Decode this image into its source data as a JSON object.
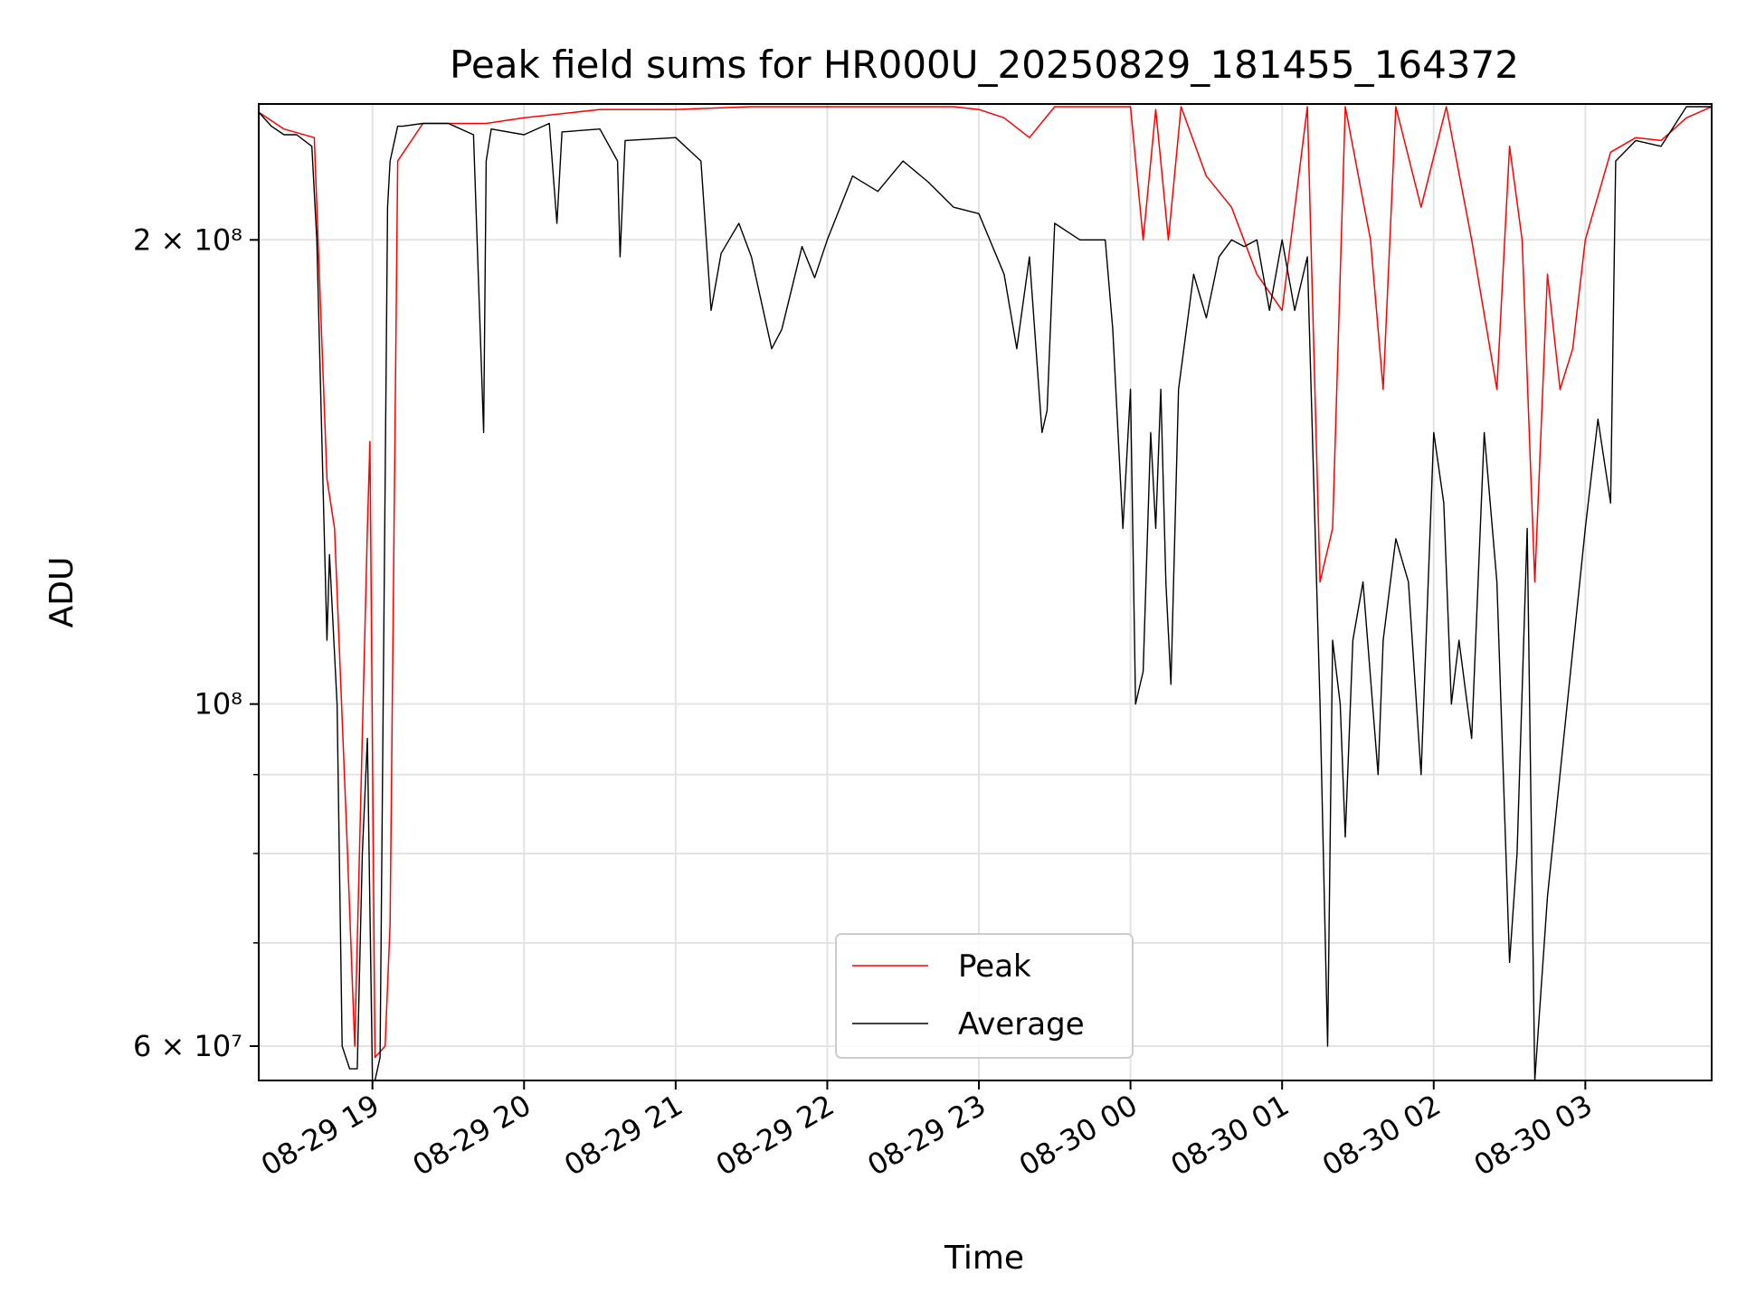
{
  "chart_data": {
    "type": "line",
    "title": "Peak field sums for HR000U_20250829_181455_164372",
    "xlabel": "Time",
    "ylabel": "ADU",
    "y_scale": "log",
    "ylim": [
      57000000,
      245000000
    ],
    "xlim": [
      "2025-08-29 18:15",
      "2025-08-30 03:50"
    ],
    "grid": true,
    "legend_position": "bottom-center",
    "x_ticks": [
      {
        "value": "2025-08-29 19:00",
        "label": "08-29 19"
      },
      {
        "value": "2025-08-29 20:00",
        "label": "08-29 20"
      },
      {
        "value": "2025-08-29 21:00",
        "label": "08-29 21"
      },
      {
        "value": "2025-08-29 22:00",
        "label": "08-29 22"
      },
      {
        "value": "2025-08-29 23:00",
        "label": "08-29 23"
      },
      {
        "value": "2025-08-30 00:00",
        "label": "08-30 00"
      },
      {
        "value": "2025-08-30 01:00",
        "label": "08-30 01"
      },
      {
        "value": "2025-08-30 02:00",
        "label": "08-30 02"
      },
      {
        "value": "2025-08-30 03:00",
        "label": "08-30 03"
      }
    ],
    "y_major_ticks": [
      {
        "value": 60000000,
        "label": "6 × 10⁷"
      },
      {
        "value": 100000000,
        "label": "10⁸"
      },
      {
        "value": 200000000,
        "label": "2 × 10⁸"
      }
    ],
    "y_minor_ticks": [
      70000000,
      80000000,
      90000000
    ],
    "series": [
      {
        "name": "Peak",
        "color": "#ff0000",
        "x": [
          "2025-08-29 18:15",
          "2025-08-29 18:25",
          "2025-08-29 18:37",
          "2025-08-29 18:42",
          "2025-08-29 18:45",
          "2025-08-29 18:50",
          "2025-08-29 18:53",
          "2025-08-29 18:58",
          "2025-08-29 18:59",
          "2025-08-29 19:01",
          "2025-08-29 19:05",
          "2025-08-29 19:07",
          "2025-08-29 19:10",
          "2025-08-29 19:20",
          "2025-08-29 19:45",
          "2025-08-29 20:00",
          "2025-08-29 20:30",
          "2025-08-29 21:00",
          "2025-08-29 21:30",
          "2025-08-29 21:40",
          "2025-08-29 21:50",
          "2025-08-29 22:00",
          "2025-08-29 22:30",
          "2025-08-29 22:50",
          "2025-08-29 23:00",
          "2025-08-29 23:10",
          "2025-08-29 23:20",
          "2025-08-29 23:30",
          "2025-08-29 23:40",
          "2025-08-29 23:50",
          "2025-08-30 00:00",
          "2025-08-30 00:05",
          "2025-08-30 00:10",
          "2025-08-30 00:15",
          "2025-08-30 00:20",
          "2025-08-30 00:30",
          "2025-08-30 00:40",
          "2025-08-30 00:50",
          "2025-08-30 01:00",
          "2025-08-30 01:10",
          "2025-08-30 01:15",
          "2025-08-30 01:20",
          "2025-08-30 01:25",
          "2025-08-30 01:35",
          "2025-08-30 01:40",
          "2025-08-30 01:45",
          "2025-08-30 01:55",
          "2025-08-30 02:05",
          "2025-08-30 02:15",
          "2025-08-30 02:25",
          "2025-08-30 02:30",
          "2025-08-30 02:35",
          "2025-08-30 02:40",
          "2025-08-30 02:45",
          "2025-08-30 02:50",
          "2025-08-30 02:55",
          "2025-08-30 03:00",
          "2025-08-30 03:10",
          "2025-08-30 03:20",
          "2025-08-30 03:30",
          "2025-08-30 03:40",
          "2025-08-30 03:50"
        ],
        "values": [
          242000000,
          236000000,
          233000000,
          140000000,
          130000000,
          81000000,
          60000000,
          130000000,
          148000000,
          59000000,
          60000000,
          72000000,
          225000000,
          238000000,
          238000000,
          240000000,
          243000000,
          243000000,
          244000000,
          244000000,
          244000000,
          244000000,
          244000000,
          244000000,
          243000000,
          240000000,
          233000000,
          244000000,
          244000000,
          244000000,
          244000000,
          200000000,
          243000000,
          200000000,
          244000000,
          220000000,
          210000000,
          190000000,
          180000000,
          244000000,
          120000000,
          130000000,
          244000000,
          200000000,
          160000000,
          244000000,
          210000000,
          244000000,
          200000000,
          160000000,
          230000000,
          200000000,
          120000000,
          190000000,
          160000000,
          170000000,
          200000000,
          228000000,
          233000000,
          232000000,
          240000000,
          244000000
        ]
      },
      {
        "name": "Average",
        "color": "#000000",
        "x": [
          "2025-08-29 18:15",
          "2025-08-29 18:20",
          "2025-08-29 18:25",
          "2025-08-29 18:30",
          "2025-08-29 18:36",
          "2025-08-29 18:38",
          "2025-08-29 18:42",
          "2025-08-29 18:43",
          "2025-08-29 18:46",
          "2025-08-29 18:48",
          "2025-08-29 18:51",
          "2025-08-29 18:54",
          "2025-08-29 18:56",
          "2025-08-29 18:58",
          "2025-08-29 19:00",
          "2025-08-29 19:01",
          "2025-08-29 19:03",
          "2025-08-29 19:06",
          "2025-08-29 19:07",
          "2025-08-29 19:09",
          "2025-08-29 19:10",
          "2025-08-29 19:12",
          "2025-08-29 19:20",
          "2025-08-29 19:30",
          "2025-08-29 19:40",
          "2025-08-29 19:44",
          "2025-08-29 19:45",
          "2025-08-29 19:47",
          "2025-08-29 20:00",
          "2025-08-29 20:10",
          "2025-08-29 20:13",
          "2025-08-29 20:15",
          "2025-08-29 20:30",
          "2025-08-29 20:37",
          "2025-08-29 20:38",
          "2025-08-29 20:40",
          "2025-08-29 21:00",
          "2025-08-29 21:10",
          "2025-08-29 21:14",
          "2025-08-29 21:18",
          "2025-08-29 21:25",
          "2025-08-29 21:30",
          "2025-08-29 21:38",
          "2025-08-29 21:42",
          "2025-08-29 21:50",
          "2025-08-29 21:55",
          "2025-08-29 22:00",
          "2025-08-29 22:10",
          "2025-08-29 22:20",
          "2025-08-29 22:30",
          "2025-08-29 22:40",
          "2025-08-29 22:50",
          "2025-08-29 23:00",
          "2025-08-29 23:10",
          "2025-08-29 23:15",
          "2025-08-29 23:20",
          "2025-08-29 23:25",
          "2025-08-29 23:27",
          "2025-08-29 23:30",
          "2025-08-29 23:40",
          "2025-08-29 23:50",
          "2025-08-29 23:53",
          "2025-08-29 23:57",
          "2025-08-30 00:00",
          "2025-08-30 00:02",
          "2025-08-30 00:05",
          "2025-08-30 00:08",
          "2025-08-30 00:10",
          "2025-08-30 00:12",
          "2025-08-30 00:14",
          "2025-08-30 00:16",
          "2025-08-30 00:19",
          "2025-08-30 00:25",
          "2025-08-30 00:30",
          "2025-08-30 00:35",
          "2025-08-30 00:40",
          "2025-08-30 00:45",
          "2025-08-30 00:50",
          "2025-08-30 00:55",
          "2025-08-30 01:00",
          "2025-08-30 01:05",
          "2025-08-30 01:10",
          "2025-08-30 01:15",
          "2025-08-30 01:18",
          "2025-08-30 01:20",
          "2025-08-30 01:23",
          "2025-08-30 01:25",
          "2025-08-30 01:28",
          "2025-08-30 01:32",
          "2025-08-30 01:38",
          "2025-08-30 01:40",
          "2025-08-30 01:45",
          "2025-08-30 01:50",
          "2025-08-30 01:55",
          "2025-08-30 02:00",
          "2025-08-30 02:04",
          "2025-08-30 02:07",
          "2025-08-30 02:10",
          "2025-08-30 02:15",
          "2025-08-30 02:20",
          "2025-08-30 02:25",
          "2025-08-30 02:30",
          "2025-08-30 02:33",
          "2025-08-30 02:37",
          "2025-08-30 02:40",
          "2025-08-30 02:45",
          "2025-08-30 03:00",
          "2025-08-30 03:05",
          "2025-08-30 03:10",
          "2025-08-30 03:12",
          "2025-08-30 03:20",
          "2025-08-30 03:30",
          "2025-08-30 03:40",
          "2025-08-30 03:50"
        ],
        "values": [
          242000000,
          237000000,
          234000000,
          234000000,
          230000000,
          200000000,
          110000000,
          125000000,
          100000000,
          60000000,
          58000000,
          58000000,
          80000000,
          95000000,
          57000000,
          57000000,
          59000000,
          210000000,
          225000000,
          233000000,
          237000000,
          237000000,
          238000000,
          238000000,
          234000000,
          150000000,
          225000000,
          236000000,
          234000000,
          238000000,
          205000000,
          235000000,
          236000000,
          225000000,
          195000000,
          232000000,
          233000000,
          225000000,
          180000000,
          196000000,
          205000000,
          195000000,
          170000000,
          175000000,
          198000000,
          189000000,
          200000000,
          220000000,
          215000000,
          225000000,
          218000000,
          210000000,
          208000000,
          190000000,
          170000000,
          195000000,
          150000000,
          155000000,
          205000000,
          200000000,
          200000000,
          175000000,
          130000000,
          160000000,
          100000000,
          105000000,
          150000000,
          130000000,
          160000000,
          120000000,
          103000000,
          160000000,
          190000000,
          178000000,
          195000000,
          200000000,
          198000000,
          200000000,
          180000000,
          200000000,
          180000000,
          195000000,
          100000000,
          60000000,
          110000000,
          100000000,
          82000000,
          110000000,
          120000000,
          90000000,
          110000000,
          128000000,
          120000000,
          90000000,
          150000000,
          135000000,
          100000000,
          110000000,
          95000000,
          150000000,
          120000000,
          68000000,
          80000000,
          130000000,
          57000000,
          75000000,
          130000000,
          153000000,
          135000000,
          225000000,
          232000000,
          230000000,
          244000000,
          244000000
        ]
      }
    ]
  }
}
